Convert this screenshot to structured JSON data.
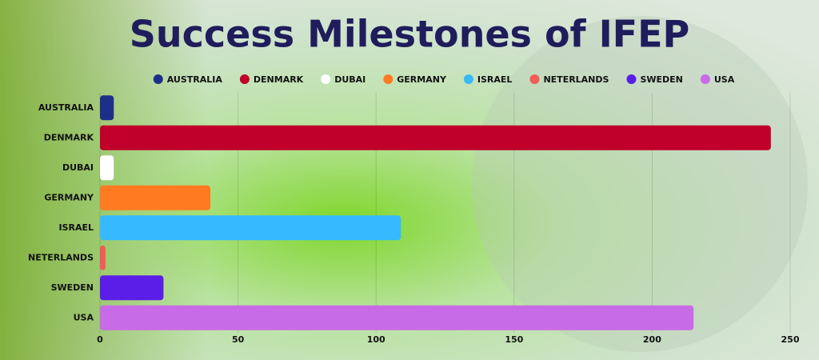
{
  "chart_data": {
    "type": "bar",
    "orientation": "horizontal",
    "title": "Success Milestones of IFEP",
    "categories": [
      "AUSTRALIA",
      "DENMARK",
      "DUBAI",
      "GERMANY",
      "ISRAEL",
      "NETERLANDS",
      "SWEDEN",
      "USA"
    ],
    "values": [
      5,
      243,
      5,
      40,
      109,
      2,
      23,
      215
    ],
    "colors": [
      "#1e2f8a",
      "#c0002a",
      "#ffffff",
      "#ff7a21",
      "#36b9ff",
      "#f25c54",
      "#5b1ee8",
      "#c86be6"
    ],
    "xlim": [
      0,
      250
    ],
    "xticks": [
      0,
      50,
      100,
      150,
      200,
      250
    ],
    "grid": true,
    "legend": "top"
  }
}
